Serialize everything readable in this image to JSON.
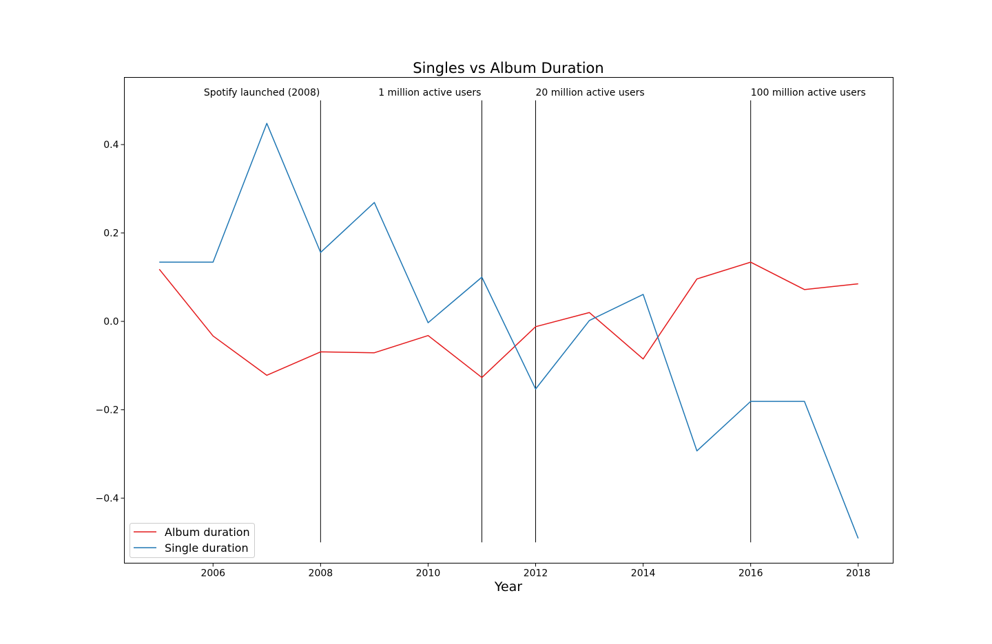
{
  "chart_data": {
    "type": "line",
    "title": "Singles vs Album Duration",
    "xlabel": "Year",
    "ylabel": "",
    "xlim": [
      2004.35,
      2018.65
    ],
    "ylim": [
      -0.547,
      0.552
    ],
    "x": [
      2005,
      2006,
      2007,
      2008,
      2009,
      2010,
      2011,
      2012,
      2013,
      2014,
      2015,
      2016,
      2017,
      2018
    ],
    "x_ticks": [
      2006,
      2008,
      2010,
      2012,
      2014,
      2016,
      2018
    ],
    "y_ticks": [
      -0.4,
      -0.2,
      0.0,
      0.2,
      0.4
    ],
    "y_tick_labels": [
      "−0.4",
      "−0.2",
      "0.0",
      "0.2",
      "0.4"
    ],
    "grid": false,
    "legend_position": "lower-left",
    "series": [
      {
        "name": "Album duration",
        "color": "#e41a1c",
        "values": [
          0.118,
          -0.033,
          -0.122,
          -0.069,
          -0.071,
          -0.032,
          -0.127,
          -0.012,
          0.02,
          -0.085,
          0.096,
          0.134,
          0.072,
          0.085
        ]
      },
      {
        "name": "Single duration",
        "color": "#1f77b4",
        "values": [
          0.134,
          0.134,
          0.448,
          0.156,
          0.269,
          -0.003,
          0.1,
          -0.153,
          0.002,
          0.061,
          -0.293,
          -0.181,
          -0.181,
          -0.491
        ]
      }
    ],
    "annotations": [
      {
        "x": 2008,
        "ymin": -0.5,
        "ymax": 0.5,
        "label": "Spotify launched (2008)",
        "align": "right"
      },
      {
        "x": 2011,
        "ymin": -0.5,
        "ymax": 0.5,
        "label": "1 million active users",
        "align": "right"
      },
      {
        "x": 2012,
        "ymin": -0.5,
        "ymax": 0.5,
        "label": "20 million active users",
        "align": "left"
      },
      {
        "x": 2016,
        "ymin": -0.5,
        "ymax": 0.5,
        "label": "100 million active users",
        "align": "left"
      }
    ]
  }
}
